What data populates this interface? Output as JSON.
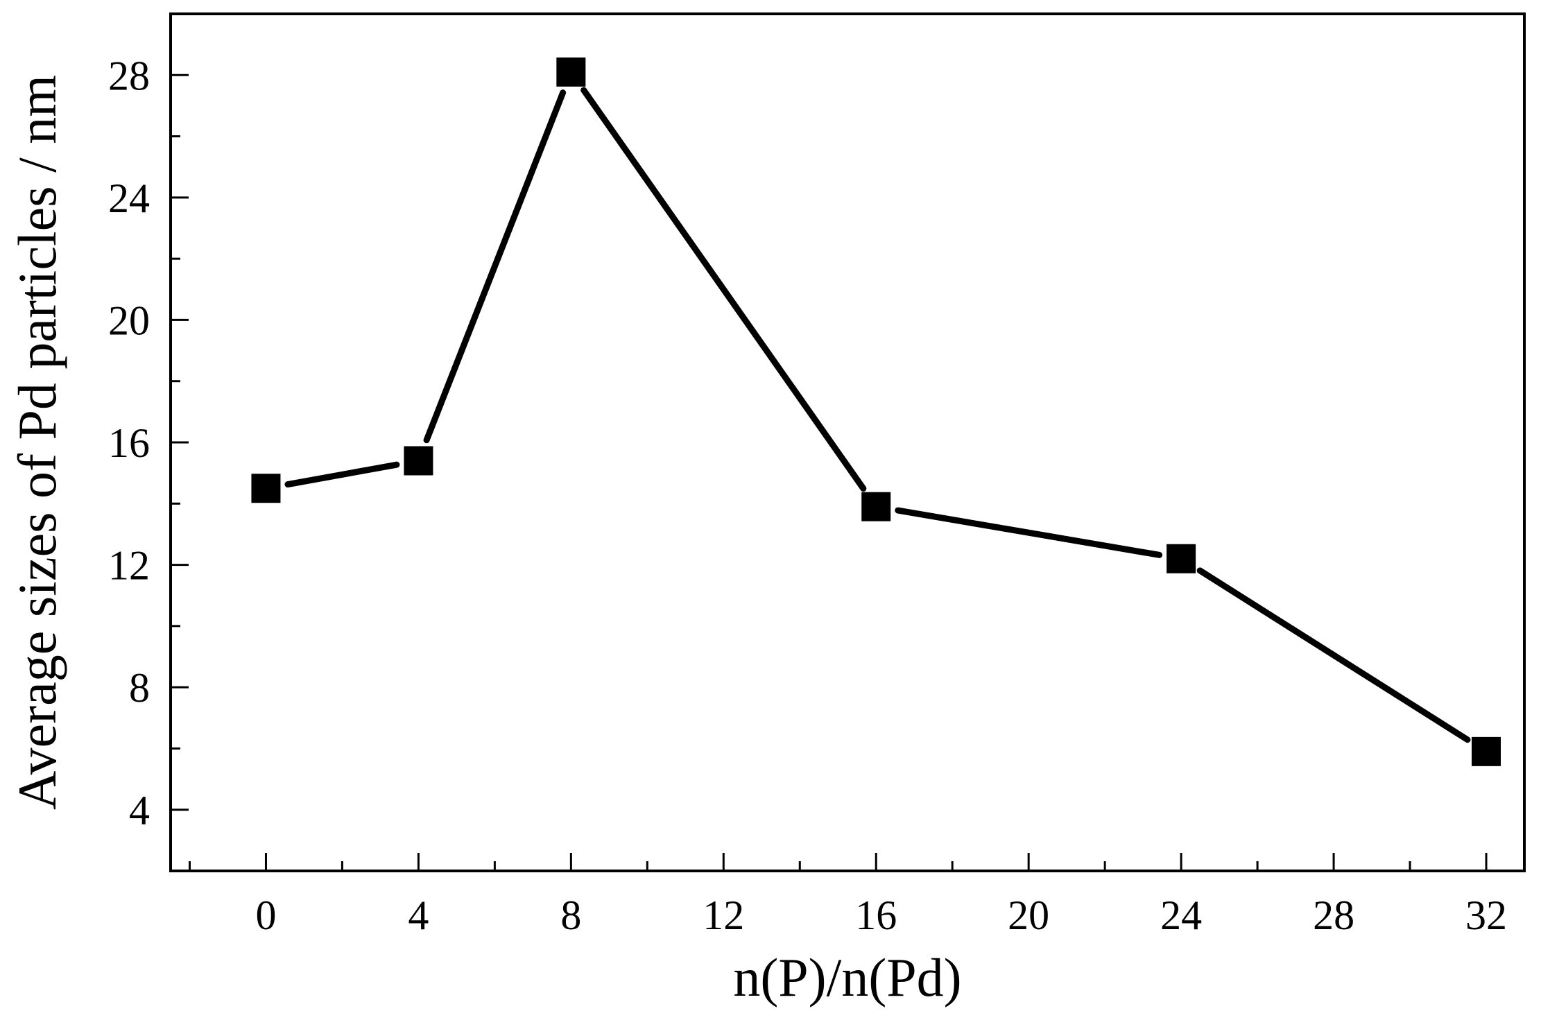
{
  "chart_data": {
    "type": "line",
    "title": "",
    "xlabel": "n(P)/n(Pd)",
    "ylabel": "Average sizes of Pd particles / nm",
    "xlim": [
      -2.5,
      33
    ],
    "ylim": [
      2,
      30
    ],
    "x_ticks": [
      0,
      4,
      8,
      12,
      16,
      20,
      24,
      28,
      32
    ],
    "x_tick_labels": [
      "0",
      "4",
      "8",
      "12",
      "16",
      "20",
      "24",
      "28",
      "32"
    ],
    "y_ticks": [
      4,
      8,
      12,
      16,
      20,
      24,
      28
    ],
    "y_tick_labels": [
      "4",
      "8",
      "12",
      "16",
      "20",
      "24",
      "28"
    ],
    "x_minor_step": 2,
    "y_minor_step": 2,
    "grid": false,
    "legend": "none",
    "series": [
      {
        "marker": "filled-square",
        "color": "#000000",
        "x": [
          0,
          4,
          8,
          16,
          24,
          32
        ],
        "y": [
          14.5,
          15.4,
          28.1,
          13.9,
          12.2,
          5.9
        ]
      }
    ]
  }
}
